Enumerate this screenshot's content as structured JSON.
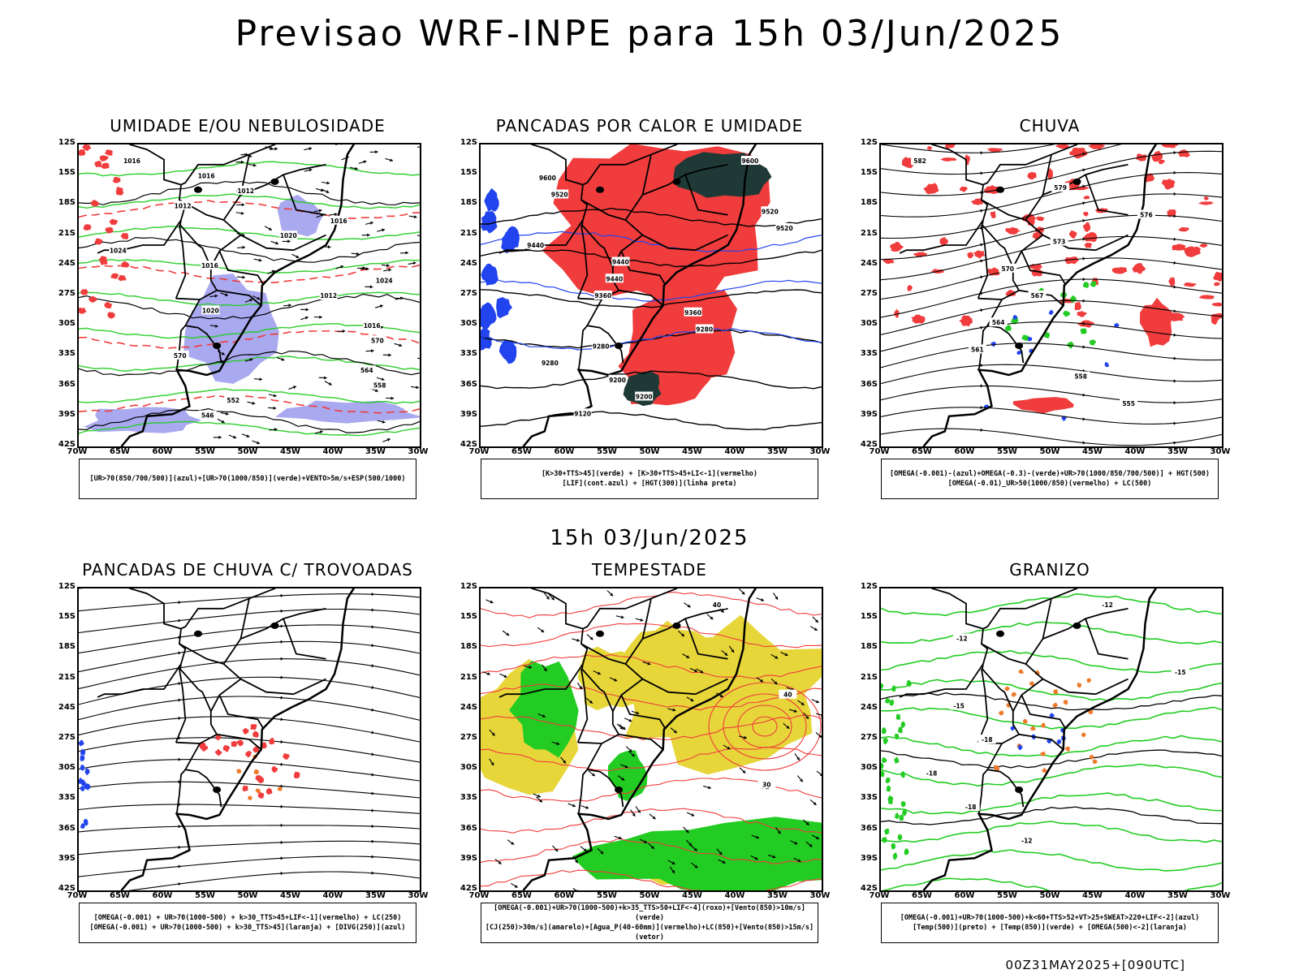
{
  "title": "Previsao WRF-INPE  para 15h 03/Jun/2025",
  "subtitle": "15h 03/Jun/2025",
  "footer": "00Z31MAY2025+[090UTC]",
  "lat_labels": [
    "12S",
    "15S",
    "18S",
    "21S",
    "24S",
    "27S",
    "30S",
    "33S",
    "36S",
    "39S",
    "42S"
  ],
  "lon_labels": [
    "70W",
    "65W",
    "60W",
    "55W",
    "50W",
    "45W",
    "40W",
    "35W",
    "30W"
  ],
  "panels": [
    {
      "title": "UMIDADE E/OU NEBULOSIDADE",
      "legend": [
        "[UR>70(850/700/500)](azul)+[UR>70(1000/850)](verde)+VENTO>5m/s+ESP(500/1000)"
      ],
      "contour_labels": [
        "1016",
        "1016",
        "1012",
        "1012",
        "1016",
        "1020",
        "1024",
        "1016",
        "1024",
        "1012",
        "1020",
        "1016",
        "570",
        "570",
        "564",
        "558",
        "552",
        "546"
      ]
    },
    {
      "title": "PANCADAS POR CALOR E UMIDADE",
      "legend": [
        "[K>30+TTS>45](verde) + [K>30+TTS>45+LI<-1](vermelho)",
        "[LIF](cont.azul) + [HGT(300)](linha preta)"
      ],
      "contour_labels": [
        "9600",
        "9600",
        "9520",
        "9520",
        "9520",
        "9440",
        "9440",
        "9440",
        "9360",
        "9360",
        "9280",
        "9280",
        "9280",
        "9200",
        "9200",
        "9120"
      ]
    },
    {
      "title": "CHUVA",
      "legend": [
        "[OMEGA(-0.001)-(azul)+OMEGA(-0.3)-(verde)+UR>70(1000/850/700/500)] + HGT(500)",
        "[OMEGA(-0.01)_UR>50(1000/850)(vermelho) + LC(500)"
      ],
      "contour_labels": [
        "582",
        "579",
        "576",
        "573",
        "570",
        "567",
        "564",
        "561",
        "558",
        "555"
      ]
    },
    {
      "title": "PANCADAS DE CHUVA C/ TROVOADAS",
      "legend": [
        "[OMEGA(-0.001) + UR>70(1000-500) + k>30_TTS>45+LIF<-1](vermelho) + LC(250)",
        "[OMEGA(-0.001) + UR>70(1000-500) + k>30_TTS>45](laranja) + [DIVG(250)](azul)"
      ],
      "contour_labels": []
    },
    {
      "title": "TEMPESTADE",
      "legend": [
        "[OMEGA(-0.001)+UR>70(1000-500)+k>35_TTS>50+LIF<-4](roxo)+[Vento(850)>10m/s](verde)",
        "[CJ(250)>30m/s](amarelo)+[Agua_P(40-60mm)](vermelho)+LC(850)+[Vento(850)>15m/s](vetor)"
      ],
      "contour_labels": [
        "40",
        "40",
        "30"
      ]
    },
    {
      "title": "GRANIZO",
      "legend": [
        "[OMEGA(-0.001)+UR>70(1000-500)+k<60+TTS>52+VT>25+SWEAT>220+LIF<-2](azul)",
        "[Temp(500)](preto) + [Temp(850)](verde) + [OMEGA(500)<-2](laranja)"
      ],
      "contour_labels": [
        "-12",
        "-12",
        "-15",
        "-15",
        "-18",
        "-18",
        "-18",
        "-12"
      ]
    }
  ],
  "colors": {
    "red": "#f03c3c",
    "green": "#22cc22",
    "blue": "#2244ee",
    "lavender": "#a9a9f0",
    "yellow": "#e6d63a",
    "darkteal": "#1f3a36",
    "orange": "#ee7a2a"
  }
}
